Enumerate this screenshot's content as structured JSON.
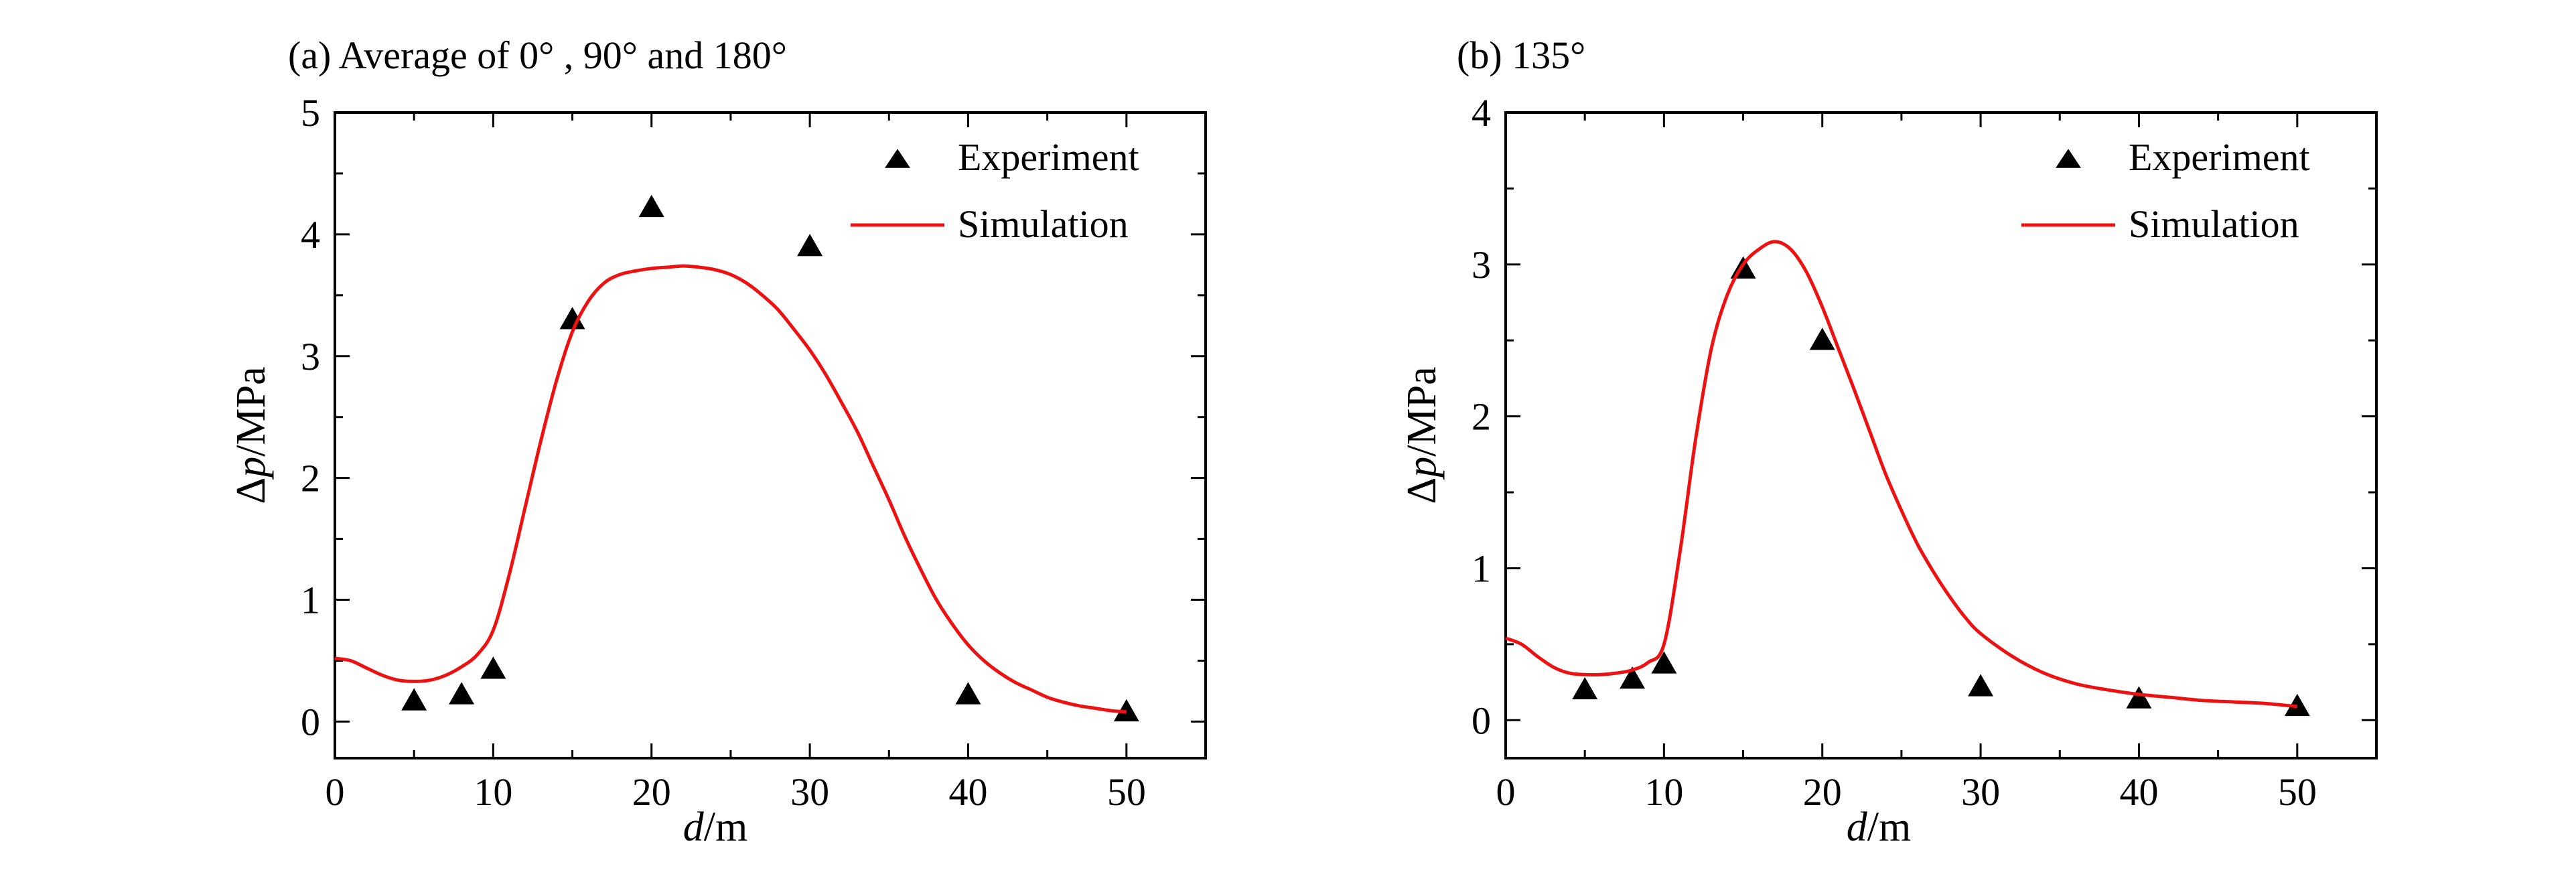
{
  "chart_data": [
    {
      "type": "line",
      "title": "(a) Average of 0°  , 90°  and  180°",
      "xlabel": "d/m",
      "ylabel": "Δp/MPa",
      "xlim": [
        0,
        55
      ],
      "ylim": [
        -0.3,
        5
      ],
      "xticks": [
        0,
        10,
        20,
        30,
        40,
        50
      ],
      "yticks": [
        0,
        1,
        2,
        3,
        4,
        5
      ],
      "grid": false,
      "legend_position": "top-right",
      "legend": [
        "Experiment",
        "Simulation"
      ],
      "series": [
        {
          "name": "Experiment",
          "kind": "scatter",
          "marker": "triangle",
          "color": "#000000",
          "x": [
            5,
            8,
            10,
            15,
            20,
            30,
            40,
            50
          ],
          "y": [
            0.17,
            0.22,
            0.43,
            3.3,
            4.22,
            3.9,
            0.22,
            0.08
          ]
        },
        {
          "name": "Simulation",
          "kind": "line",
          "color": "#ee1111",
          "x": [
            0,
            1,
            2,
            3,
            4,
            5,
            6,
            7,
            8,
            9,
            10,
            11,
            12,
            13,
            14,
            15,
            16,
            17,
            18,
            19,
            20,
            21,
            22,
            23,
            24,
            25,
            26,
            27,
            28,
            29,
            30,
            31,
            32,
            33,
            34,
            35,
            36,
            37,
            38,
            39,
            40,
            41,
            42,
            43,
            44,
            45,
            46,
            47,
            48,
            49,
            50
          ],
          "y": [
            0.52,
            0.5,
            0.44,
            0.38,
            0.34,
            0.33,
            0.34,
            0.38,
            0.45,
            0.55,
            0.75,
            1.2,
            1.75,
            2.3,
            2.8,
            3.2,
            3.45,
            3.6,
            3.67,
            3.7,
            3.72,
            3.73,
            3.74,
            3.73,
            3.71,
            3.67,
            3.6,
            3.5,
            3.38,
            3.22,
            3.05,
            2.85,
            2.62,
            2.38,
            2.1,
            1.82,
            1.52,
            1.25,
            1.0,
            0.8,
            0.63,
            0.5,
            0.4,
            0.32,
            0.26,
            0.2,
            0.16,
            0.13,
            0.11,
            0.09,
            0.08
          ]
        }
      ]
    },
    {
      "type": "line",
      "title": "(b) 135°",
      "xlabel": "d/m",
      "ylabel": "Δp/MPa",
      "xlim": [
        0,
        55
      ],
      "ylim": [
        -0.25,
        4
      ],
      "xticks": [
        0,
        10,
        20,
        30,
        40,
        50
      ],
      "yticks": [
        0,
        1,
        2,
        3,
        4
      ],
      "grid": false,
      "legend_position": "top-right",
      "legend": [
        "Experiment",
        "Simulation"
      ],
      "series": [
        {
          "name": "Experiment",
          "kind": "scatter",
          "marker": "triangle",
          "color": "#000000",
          "x": [
            5,
            8,
            10,
            15,
            20,
            30,
            40,
            50
          ],
          "y": [
            0.2,
            0.27,
            0.37,
            2.97,
            2.5,
            0.22,
            0.14,
            0.09
          ]
        },
        {
          "name": "Simulation",
          "kind": "line",
          "color": "#ee1111",
          "x": [
            0,
            1,
            2,
            3,
            4,
            5,
            6,
            7,
            8,
            9,
            10,
            11,
            12,
            13,
            14,
            15,
            16,
            17,
            18,
            19,
            20,
            21,
            22,
            23,
            24,
            25,
            26,
            27,
            28,
            29,
            30,
            32,
            34,
            36,
            38,
            40,
            42,
            44,
            46,
            48,
            50
          ],
          "y": [
            0.54,
            0.5,
            0.42,
            0.35,
            0.31,
            0.3,
            0.3,
            0.31,
            0.33,
            0.38,
            0.5,
            1.1,
            1.85,
            2.45,
            2.8,
            3.0,
            3.1,
            3.15,
            3.1,
            2.95,
            2.72,
            2.45,
            2.18,
            1.9,
            1.62,
            1.38,
            1.16,
            0.98,
            0.82,
            0.68,
            0.57,
            0.42,
            0.31,
            0.24,
            0.2,
            0.17,
            0.15,
            0.13,
            0.12,
            0.11,
            0.09
          ]
        }
      ]
    }
  ]
}
